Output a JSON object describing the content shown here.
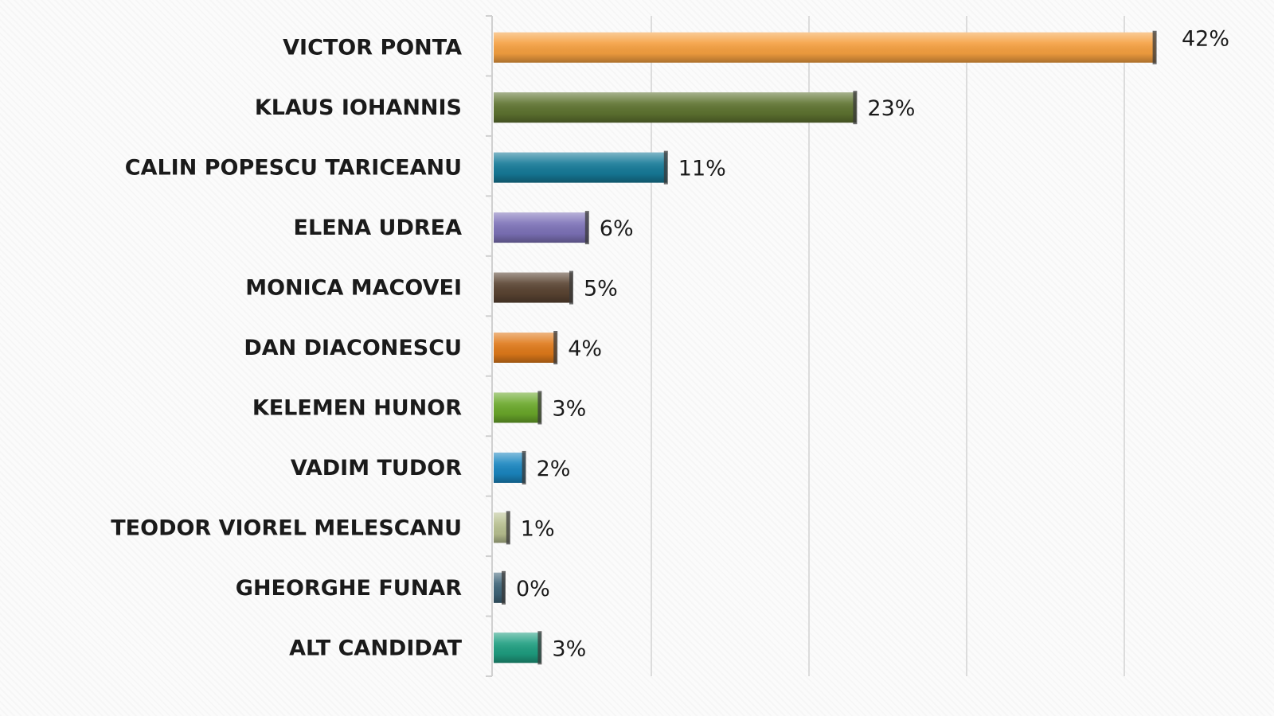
{
  "chart_data": {
    "type": "bar",
    "orientation": "horizontal",
    "categories": [
      "VICTOR PONTA",
      "KLAUS IOHANNIS",
      "CALIN POPESCU TARICEANU",
      "ELENA UDREA",
      "MONICA MACOVEI",
      "DAN DIACONESCU",
      "KELEMEN HUNOR",
      "VADIM TUDOR",
      "TEODOR VIOREL MELESCANU",
      "GHEORGHE FUNAR",
      "ALT CANDIDAT"
    ],
    "values": [
      42,
      23,
      11,
      6,
      5,
      4,
      3,
      2,
      1,
      0,
      3
    ],
    "data_labels": [
      "42%",
      "23%",
      "11%",
      "6%",
      "5%",
      "4%",
      "3%",
      "2%",
      "1%",
      "0%",
      "3%"
    ],
    "colors": [
      "#f5a040",
      "#5e7330",
      "#167a98",
      "#7d72b8",
      "#5a4432",
      "#e07a1a",
      "#6aa82a",
      "#1a86c0",
      "#b8c090",
      "#3e6478",
      "#1e9e80"
    ],
    "xlim": [
      0,
      48
    ],
    "grid": true,
    "gridline_interval": 10,
    "tick_labels_shown": false,
    "title": "",
    "xlabel": "",
    "ylabel": ""
  }
}
